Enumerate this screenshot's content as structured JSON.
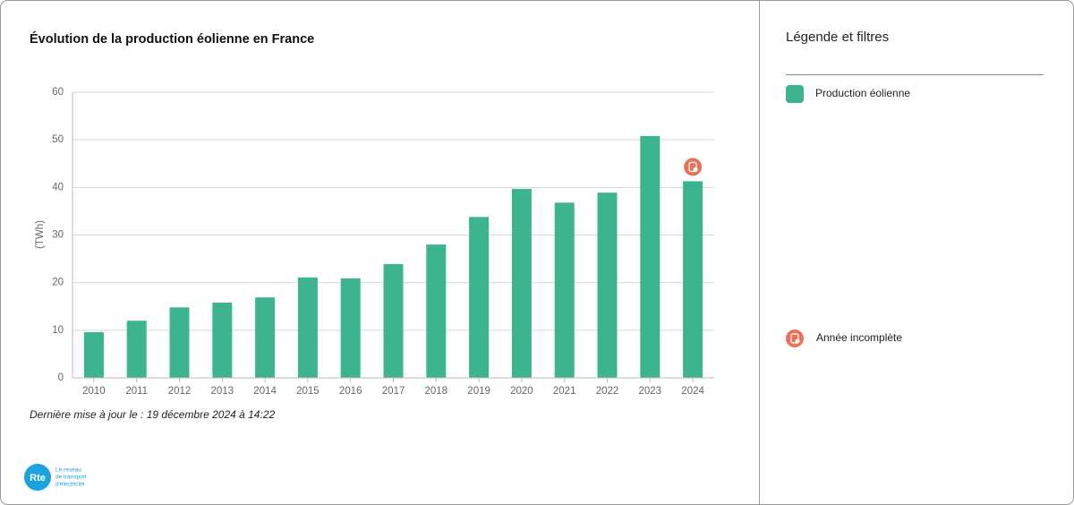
{
  "chart_data": {
    "type": "bar",
    "title": "Évolution de la production éolienne en France",
    "y_label": "(TWh)",
    "categories": [
      "2010",
      "2011",
      "2012",
      "2013",
      "2014",
      "2015",
      "2016",
      "2017",
      "2018",
      "2019",
      "2020",
      "2021",
      "2022",
      "2023",
      "2024"
    ],
    "series": [
      {
        "name": "Production éolienne",
        "color": "#3bb48f",
        "values": [
          9.6,
          12.0,
          14.8,
          15.8,
          16.9,
          21.1,
          20.9,
          23.9,
          28.0,
          33.8,
          39.7,
          36.8,
          38.9,
          50.8,
          41.3
        ]
      }
    ],
    "ylim": [
      0,
      60
    ],
    "yticks": [
      0,
      10,
      20,
      30,
      40,
      50,
      60
    ],
    "grid": true,
    "incomplete_categories": [
      "2024"
    ],
    "incomplete_label": "Année incomplète",
    "incomplete_color": "#e8735a",
    "footnote": "Dernière mise à jour le : 19 décembre 2024 à 14:22",
    "legend_title": "Légende et filtres"
  },
  "logo": {
    "mark": "Rte",
    "lines": [
      "Le réseau",
      "de transport",
      "d'électricité"
    ]
  }
}
